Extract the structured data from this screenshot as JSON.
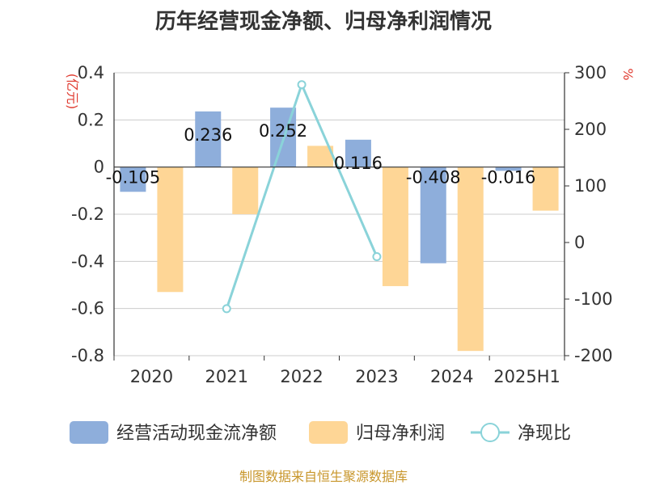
{
  "chart_data": {
    "type": "bar",
    "title": "历年经营现金净额、归母净利润情况",
    "categories": [
      "2020",
      "2021",
      "2022",
      "2023",
      "2024",
      "2025H1"
    ],
    "left_axis": {
      "label": "(亿元)",
      "ylim": [
        -0.8,
        0.4
      ],
      "ticks": [
        0.4,
        0.2,
        0,
        -0.2,
        -0.4,
        -0.6,
        -0.8
      ],
      "tick_labels": [
        "0.4",
        "0.2",
        "0",
        "-0.2",
        "-0.4",
        "-0.6",
        "-0.8"
      ]
    },
    "right_axis": {
      "label": "%",
      "ylim": [
        -200,
        300
      ],
      "ticks": [
        300,
        200,
        100,
        0,
        -100,
        -200
      ],
      "tick_labels": [
        "300",
        "200",
        "100",
        "0",
        "-100",
        "-200"
      ]
    },
    "series": [
      {
        "name": "经营活动现金流净额",
        "type": "bar",
        "axis": "left",
        "color": "#8eaedb",
        "values": [
          -0.105,
          0.236,
          0.252,
          0.116,
          -0.408,
          -0.016
        ],
        "data_labels": [
          "-0.105",
          "0.236",
          "0.252",
          "0.116",
          "-0.408",
          "-0.016"
        ]
      },
      {
        "name": "归母净利润",
        "type": "bar",
        "axis": "left",
        "color": "#fed696",
        "values": [
          -0.53,
          -0.2,
          0.09,
          -0.505,
          -0.78,
          -0.185
        ]
      },
      {
        "name": "净现比",
        "type": "line",
        "axis": "right",
        "color": "#8ad3d9",
        "values": [
          null,
          -117,
          279,
          -25,
          null,
          null
        ]
      }
    ],
    "grid": true,
    "legend_position": "bottom",
    "source": "制图数据来自恒生聚源数据库",
    "colors": {
      "title": "#333333",
      "axis_label_red": "#e03c31",
      "source": "#c8962b",
      "grid": "#cccccc",
      "axis": "#333333"
    }
  }
}
